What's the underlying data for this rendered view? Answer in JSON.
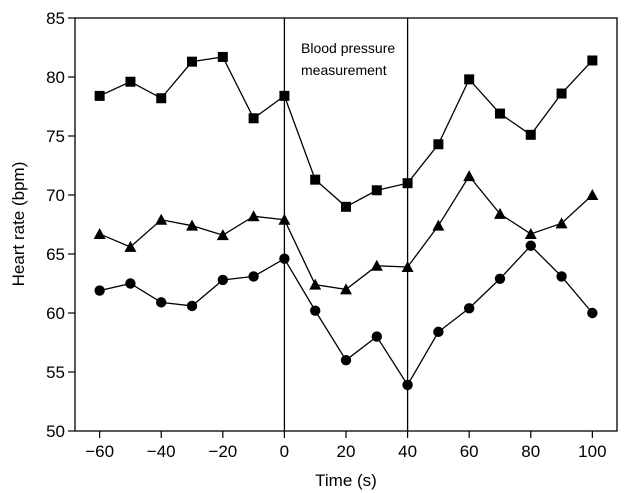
{
  "chart_data": {
    "type": "line",
    "xlabel": "Time (s)",
    "ylabel": "Heart rate (bpm)",
    "xlim": [
      -68,
      108
    ],
    "ylim": [
      50,
      85
    ],
    "xticks": [
      -60,
      -40,
      -20,
      0,
      20,
      40,
      60,
      80,
      100
    ],
    "xtick_labels": [
      "−60",
      "−40",
      "−20",
      "0",
      "20",
      "40",
      "60",
      "80",
      "100"
    ],
    "yticks": [
      50,
      55,
      60,
      65,
      70,
      75,
      80,
      85
    ],
    "x": [
      -60,
      -50,
      -40,
      -30,
      -20,
      -10,
      0,
      10,
      20,
      30,
      40,
      50,
      60,
      70,
      80,
      90,
      100
    ],
    "series": [
      {
        "marker": "square",
        "values": [
          78.4,
          79.6,
          78.2,
          81.3,
          81.7,
          76.5,
          78.4,
          71.3,
          69.0,
          70.4,
          71.0,
          74.3,
          79.8,
          76.9,
          75.1,
          78.6,
          81.4
        ]
      },
      {
        "marker": "triangle",
        "values": [
          66.7,
          65.6,
          67.9,
          67.4,
          66.6,
          68.2,
          67.9,
          62.4,
          62.0,
          64.0,
          63.9,
          67.4,
          71.6,
          68.4,
          66.7,
          67.6,
          70.0
        ]
      },
      {
        "marker": "circle",
        "values": [
          61.9,
          62.5,
          60.9,
          60.6,
          62.8,
          63.1,
          64.6,
          60.2,
          56.0,
          58.0,
          53.9,
          58.4,
          60.4,
          62.9,
          65.7,
          63.1,
          60.0
        ]
      }
    ],
    "vertical_lines_x": [
      0,
      40
    ],
    "annotation": {
      "line1": "Blood pressure",
      "line2": "measurement"
    },
    "grid": false,
    "legend": "none"
  }
}
